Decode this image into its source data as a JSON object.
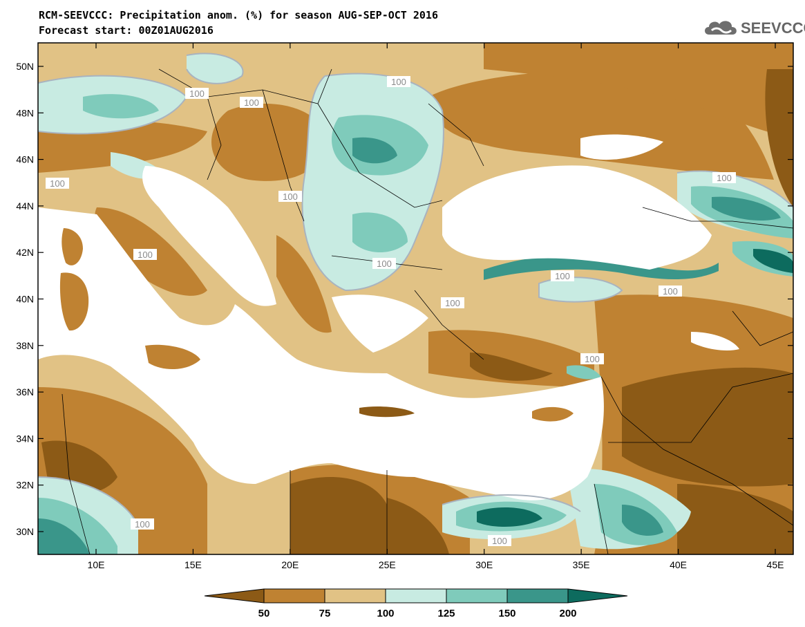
{
  "title_line1": "RCM-SEEVCCC: Precipitation anom. (%) for season AUG-SEP-OCT 2016",
  "title_line2": "Forecast start: 00Z01AUG2016",
  "logo_text": "SEEVCCC",
  "logo_icon": "cloud-icon",
  "lat_labels": [
    "50N",
    "48N",
    "46N",
    "44N",
    "42N",
    "40N",
    "38N",
    "36N",
    "34N",
    "32N",
    "30N"
  ],
  "lat_values": [
    50,
    48,
    46,
    44,
    42,
    40,
    38,
    36,
    34,
    32,
    30
  ],
  "lon_labels": [
    "10E",
    "15E",
    "20E",
    "25E",
    "30E",
    "35E",
    "40E",
    "45E"
  ],
  "lon_values": [
    10,
    15,
    20,
    25,
    30,
    35,
    40,
    45
  ],
  "contour_label": "100",
  "colorbar": {
    "ticks": [
      "50",
      "75",
      "100",
      "125",
      "150",
      "200"
    ],
    "colors": [
      "#8c5a16",
      "#bf8232",
      "#e1c285",
      "#c8ebe2",
      "#7fcbbb",
      "#3a968a",
      "#0d6b5e"
    ]
  },
  "palette": {
    "lt50": "#8c5a16",
    "50_75": "#bf8232",
    "75_100": "#e1c285",
    "100_125": "#c8ebe2",
    "125_150": "#7fcbbb",
    "150_200": "#3a968a",
    "gt200": "#0d6b5e",
    "sea": "#ffffff",
    "contour": "#a9b3bf"
  }
}
